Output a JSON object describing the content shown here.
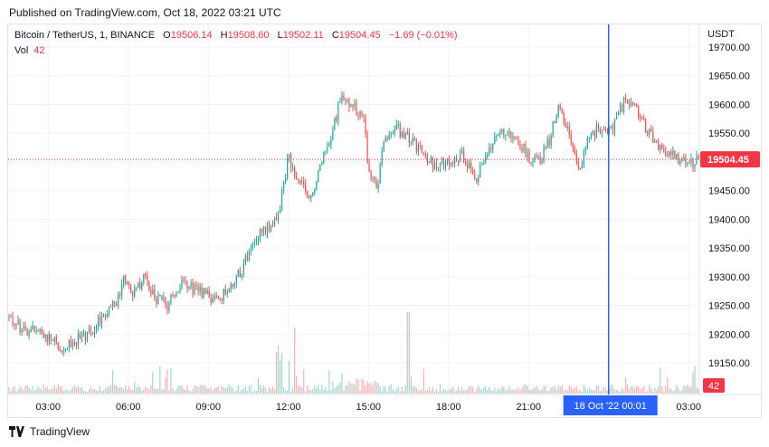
{
  "header": {
    "published": "Published on TradingView.com, Oct 18, 2022 03:21 UTC"
  },
  "legend": {
    "symbol": "Bitcoin / TetherUS, 1, BINANCE",
    "open_label": "O",
    "open": "19506.14",
    "high_label": "H",
    "high": "19508.60",
    "low_label": "L",
    "low": "19502.11",
    "close_label": "C",
    "close": "19504.45",
    "change": "−1.69 (−0.01%)",
    "vol_label": "Vol",
    "vol_value": "42"
  },
  "axis": {
    "currency": "USDT",
    "last_price_tag": "19504.45",
    "last_volume_tag": "42",
    "crosshair_time_tag": "18 Oct '22  00:01"
  },
  "footer": {
    "brand": "TradingView"
  },
  "colors": {
    "up": "#26a69a",
    "down": "#ef5350",
    "crosshair": "#2962ff",
    "price_tag": "#f23645"
  },
  "chart_data": {
    "type": "candlestick",
    "interval": "1 minute",
    "y_range": [
      19130,
      19720
    ],
    "y_ticks": [
      "19700.00",
      "19650.00",
      "19600.00",
      "19550.00",
      "19500.00",
      "19450.00",
      "19400.00",
      "19350.00",
      "19300.00",
      "19250.00",
      "19200.00",
      "19150.00"
    ],
    "x_range_hours": [
      1.5,
      27.4
    ],
    "x_ticks": [
      {
        "label": "03:00",
        "h": 3
      },
      {
        "label": "06:00",
        "h": 6
      },
      {
        "label": "09:00",
        "h": 9
      },
      {
        "label": "12:00",
        "h": 12
      },
      {
        "label": "15:00",
        "h": 15
      },
      {
        "label": "18:00",
        "h": 18
      },
      {
        "label": "21:00",
        "h": 21
      },
      {
        "label": "03:00",
        "h": 27
      }
    ],
    "crosshair_hour": 24.0,
    "last_price": 19504.45,
    "price_path": [
      [
        1.5,
        19230
      ],
      [
        2.0,
        19210
      ],
      [
        2.5,
        19205
      ],
      [
        3.0,
        19195
      ],
      [
        3.5,
        19175
      ],
      [
        4.0,
        19190
      ],
      [
        4.5,
        19200
      ],
      [
        5.0,
        19230
      ],
      [
        5.5,
        19250
      ],
      [
        5.9,
        19300
      ],
      [
        6.2,
        19270
      ],
      [
        6.6,
        19300
      ],
      [
        7.0,
        19265
      ],
      [
        7.5,
        19250
      ],
      [
        8.0,
        19290
      ],
      [
        8.6,
        19275
      ],
      [
        9.2,
        19260
      ],
      [
        9.6,
        19270
      ],
      [
        10.0,
        19290
      ],
      [
        10.5,
        19340
      ],
      [
        11.0,
        19380
      ],
      [
        11.6,
        19400
      ],
      [
        12.0,
        19510
      ],
      [
        12.4,
        19470
      ],
      [
        12.8,
        19430
      ],
      [
        13.2,
        19500
      ],
      [
        13.7,
        19560
      ],
      [
        14.0,
        19620
      ],
      [
        14.3,
        19600
      ],
      [
        14.8,
        19580
      ],
      [
        15.0,
        19490
      ],
      [
        15.3,
        19450
      ],
      [
        15.6,
        19540
      ],
      [
        16.0,
        19560
      ],
      [
        16.5,
        19540
      ],
      [
        17.0,
        19520
      ],
      [
        17.5,
        19490
      ],
      [
        18.0,
        19500
      ],
      [
        18.5,
        19510
      ],
      [
        19.0,
        19470
      ],
      [
        19.5,
        19520
      ],
      [
        20.0,
        19550
      ],
      [
        20.5,
        19540
      ],
      [
        21.0,
        19510
      ],
      [
        21.4,
        19500
      ],
      [
        21.8,
        19540
      ],
      [
        22.1,
        19600
      ],
      [
        22.5,
        19550
      ],
      [
        22.9,
        19490
      ],
      [
        23.3,
        19550
      ],
      [
        23.8,
        19560
      ],
      [
        24.2,
        19560
      ],
      [
        24.6,
        19610
      ],
      [
        25.0,
        19600
      ],
      [
        25.4,
        19560
      ],
      [
        25.9,
        19530
      ],
      [
        26.5,
        19510
      ],
      [
        27.0,
        19495
      ],
      [
        27.4,
        19504
      ]
    ]
  }
}
